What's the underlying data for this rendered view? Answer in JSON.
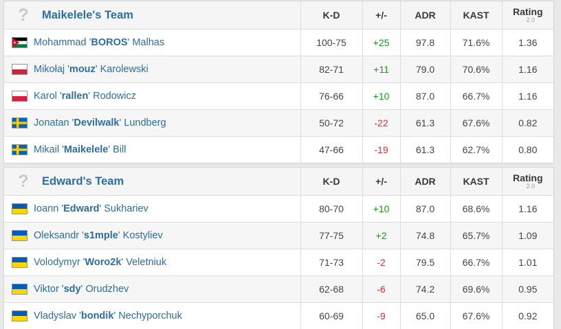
{
  "columns": [
    "K-D",
    "+/-",
    "ADR",
    "KAST",
    "Rating"
  ],
  "rating_sub": "2.0",
  "name_quote": "'",
  "logo_placeholder": "?",
  "colors": {
    "link": "#2d6da3",
    "positive": "#149b14",
    "negative": "#dc2f2f",
    "header_bg": "#f5f5f5",
    "zebra_bg": "#f6f6f6",
    "page_bg": "#e9e9e9"
  },
  "teams": [
    {
      "name": "Maikelele's Team",
      "players": [
        {
          "first": "Mohammad",
          "nick": "BOROS",
          "last": "Malhas",
          "country": "Jordan",
          "kd": "100-75",
          "diff": "+25",
          "adr": "97.8",
          "kast": "71.6%",
          "rating": "1.36"
        },
        {
          "first": "Mikołaj",
          "nick": "mouz",
          "last": "Karolewski",
          "country": "Poland",
          "kd": "82-71",
          "diff": "+11",
          "adr": "79.0",
          "kast": "70.6%",
          "rating": "1.16"
        },
        {
          "first": "Karol",
          "nick": "rallen",
          "last": "Rodowicz",
          "country": "Poland",
          "kd": "76-66",
          "diff": "+10",
          "adr": "87.0",
          "kast": "66.7%",
          "rating": "1.16"
        },
        {
          "first": "Jonatan",
          "nick": "Devilwalk",
          "last": "Lundberg",
          "country": "Sweden",
          "kd": "50-72",
          "diff": "-22",
          "adr": "61.3",
          "kast": "67.6%",
          "rating": "0.82"
        },
        {
          "first": "Mikail",
          "nick": "Maikelele",
          "last": "Bill",
          "country": "Sweden",
          "kd": "47-66",
          "diff": "-19",
          "adr": "61.3",
          "kast": "62.7%",
          "rating": "0.80"
        }
      ]
    },
    {
      "name": "Edward's Team",
      "players": [
        {
          "first": "Ioann",
          "nick": "Edward",
          "last": "Sukhariev",
          "country": "Ukraine",
          "kd": "80-70",
          "diff": "+10",
          "adr": "87.0",
          "kast": "68.6%",
          "rating": "1.16"
        },
        {
          "first": "Oleksandr",
          "nick": "s1mple",
          "last": "Kostyliev",
          "country": "Ukraine",
          "kd": "77-75",
          "diff": "+2",
          "adr": "74.8",
          "kast": "65.7%",
          "rating": "1.09"
        },
        {
          "first": "Volodymyr",
          "nick": "Woro2k",
          "last": "Veletniuk",
          "country": "Ukraine",
          "kd": "71-73",
          "diff": "-2",
          "adr": "79.5",
          "kast": "66.7%",
          "rating": "1.01"
        },
        {
          "first": "Viktor",
          "nick": "sdy",
          "last": "Orudzhev",
          "country": "Ukraine",
          "kd": "62-68",
          "diff": "-6",
          "adr": "74.2",
          "kast": "69.6%",
          "rating": "0.95"
        },
        {
          "first": "Vladyslav",
          "nick": "bondik",
          "last": "Nechyporchuk",
          "country": "Ukraine",
          "kd": "60-69",
          "diff": "-9",
          "adr": "65.0",
          "kast": "67.6%",
          "rating": "0.92"
        }
      ]
    }
  ]
}
